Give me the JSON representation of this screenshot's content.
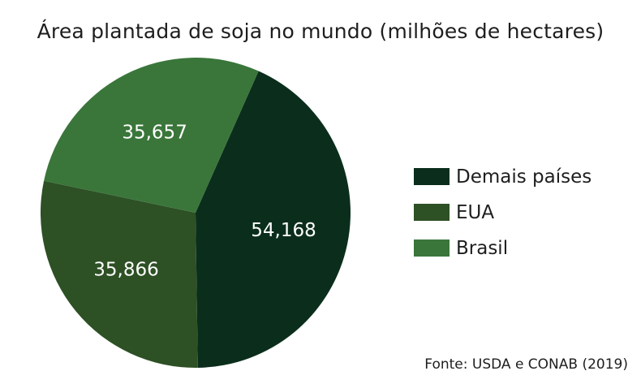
{
  "chart_data": {
    "type": "pie",
    "title": "Área plantada de soja no mundo (milhões de hectares)",
    "categories": [
      "Demais países",
      "EUA",
      "Brasil"
    ],
    "values": [
      54.168,
      35.866,
      35.657
    ],
    "value_labels": [
      "54,168",
      "35,866",
      "35,657"
    ],
    "colors": [
      "#0b2e1c",
      "#2d5025",
      "#3a763a"
    ],
    "legend_position": "right",
    "source": "Fonte: USDA e CONAB (2019)"
  }
}
